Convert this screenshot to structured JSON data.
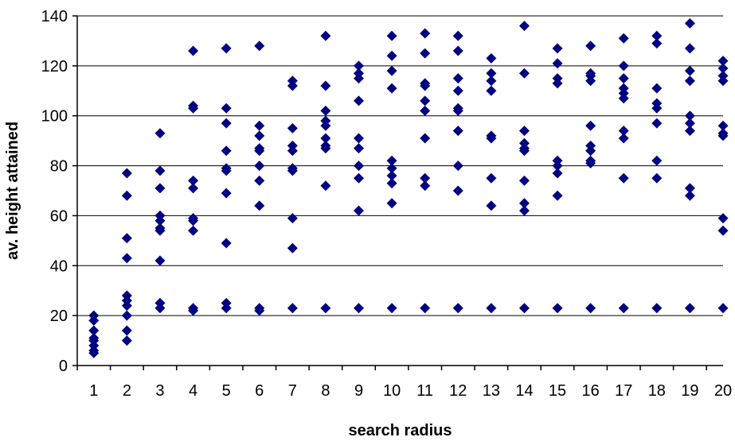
{
  "chart_data": {
    "type": "scatter",
    "title": "",
    "xlabel": "search radius",
    "ylabel": "av. height attained",
    "xlim": [
      0.5,
      20
    ],
    "ylim": [
      0,
      140
    ],
    "x_ticks": [
      1,
      2,
      3,
      4,
      5,
      6,
      7,
      8,
      9,
      10,
      11,
      12,
      13,
      14,
      15,
      16,
      17,
      18,
      19,
      20
    ],
    "y_ticks": [
      0,
      20,
      40,
      60,
      80,
      100,
      120,
      140
    ],
    "grid": "horizontal",
    "legend": "none",
    "marker": "diamond",
    "color": "#000080",
    "points": [
      [
        1,
        20
      ],
      [
        1,
        18
      ],
      [
        1,
        14
      ],
      [
        1,
        11
      ],
      [
        1,
        10
      ],
      [
        1,
        8
      ],
      [
        1,
        6
      ],
      [
        1,
        5
      ],
      [
        2,
        77
      ],
      [
        2,
        68
      ],
      [
        2,
        51
      ],
      [
        2,
        43
      ],
      [
        2,
        28
      ],
      [
        2,
        26
      ],
      [
        2,
        24
      ],
      [
        2,
        20
      ],
      [
        2,
        14
      ],
      [
        2,
        10
      ],
      [
        3,
        93
      ],
      [
        3,
        78
      ],
      [
        3,
        71
      ],
      [
        3,
        60
      ],
      [
        3,
        58
      ],
      [
        3,
        55
      ],
      [
        3,
        54
      ],
      [
        3,
        42
      ],
      [
        3,
        25
      ],
      [
        3,
        23
      ],
      [
        4,
        126
      ],
      [
        4,
        104
      ],
      [
        4,
        103
      ],
      [
        4,
        74
      ],
      [
        4,
        71
      ],
      [
        4,
        59
      ],
      [
        4,
        58
      ],
      [
        4,
        54
      ],
      [
        4,
        23
      ],
      [
        4,
        22
      ],
      [
        5,
        127
      ],
      [
        5,
        103
      ],
      [
        5,
        97
      ],
      [
        5,
        86
      ],
      [
        5,
        79
      ],
      [
        5,
        78
      ],
      [
        5,
        69
      ],
      [
        5,
        49
      ],
      [
        5,
        25
      ],
      [
        5,
        23
      ],
      [
        6,
        128
      ],
      [
        6,
        96
      ],
      [
        6,
        92
      ],
      [
        6,
        87
      ],
      [
        6,
        86
      ],
      [
        6,
        80
      ],
      [
        6,
        74
      ],
      [
        6,
        64
      ],
      [
        6,
        23
      ],
      [
        6,
        22
      ],
      [
        7,
        114
      ],
      [
        7,
        112
      ],
      [
        7,
        95
      ],
      [
        7,
        88
      ],
      [
        7,
        86
      ],
      [
        7,
        79
      ],
      [
        7,
        78
      ],
      [
        7,
        59
      ],
      [
        7,
        47
      ],
      [
        7,
        23
      ],
      [
        8,
        132
      ],
      [
        8,
        112
      ],
      [
        8,
        102
      ],
      [
        8,
        98
      ],
      [
        8,
        96
      ],
      [
        8,
        91
      ],
      [
        8,
        88
      ],
      [
        8,
        87
      ],
      [
        8,
        72
      ],
      [
        8,
        23
      ],
      [
        9,
        120
      ],
      [
        9,
        117
      ],
      [
        9,
        115
      ],
      [
        9,
        106
      ],
      [
        9,
        91
      ],
      [
        9,
        87
      ],
      [
        9,
        80
      ],
      [
        9,
        75
      ],
      [
        9,
        62
      ],
      [
        9,
        23
      ],
      [
        10,
        132
      ],
      [
        10,
        124
      ],
      [
        10,
        118
      ],
      [
        10,
        111
      ],
      [
        10,
        82
      ],
      [
        10,
        79
      ],
      [
        10,
        76
      ],
      [
        10,
        73
      ],
      [
        10,
        65
      ],
      [
        10,
        23
      ],
      [
        11,
        133
      ],
      [
        11,
        125
      ],
      [
        11,
        113
      ],
      [
        11,
        112
      ],
      [
        11,
        106
      ],
      [
        11,
        102
      ],
      [
        11,
        91
      ],
      [
        11,
        75
      ],
      [
        11,
        72
      ],
      [
        11,
        23
      ],
      [
        12,
        132
      ],
      [
        12,
        126
      ],
      [
        12,
        115
      ],
      [
        12,
        110
      ],
      [
        12,
        103
      ],
      [
        12,
        102
      ],
      [
        12,
        94
      ],
      [
        12,
        80
      ],
      [
        12,
        70
      ],
      [
        12,
        23
      ],
      [
        13,
        123
      ],
      [
        13,
        117
      ],
      [
        13,
        114
      ],
      [
        13,
        110
      ],
      [
        13,
        92
      ],
      [
        13,
        91
      ],
      [
        13,
        75
      ],
      [
        13,
        64
      ],
      [
        13,
        23
      ],
      [
        14,
        136
      ],
      [
        14,
        117
      ],
      [
        14,
        94
      ],
      [
        14,
        89
      ],
      [
        14,
        87
      ],
      [
        14,
        86
      ],
      [
        14,
        74
      ],
      [
        14,
        65
      ],
      [
        14,
        62
      ],
      [
        14,
        23
      ],
      [
        15,
        127
      ],
      [
        15,
        121
      ],
      [
        15,
        115
      ],
      [
        15,
        113
      ],
      [
        15,
        82
      ],
      [
        15,
        80
      ],
      [
        15,
        77
      ],
      [
        15,
        68
      ],
      [
        15,
        23
      ],
      [
        16,
        128
      ],
      [
        16,
        117
      ],
      [
        16,
        116
      ],
      [
        16,
        114
      ],
      [
        16,
        96
      ],
      [
        16,
        88
      ],
      [
        16,
        86
      ],
      [
        16,
        82
      ],
      [
        16,
        81
      ],
      [
        16,
        23
      ],
      [
        17,
        131
      ],
      [
        17,
        120
      ],
      [
        17,
        115
      ],
      [
        17,
        111
      ],
      [
        17,
        109
      ],
      [
        17,
        107
      ],
      [
        17,
        94
      ],
      [
        17,
        91
      ],
      [
        17,
        75
      ],
      [
        17,
        23
      ],
      [
        18,
        132
      ],
      [
        18,
        129
      ],
      [
        18,
        111
      ],
      [
        18,
        105
      ],
      [
        18,
        103
      ],
      [
        18,
        97
      ],
      [
        18,
        82
      ],
      [
        18,
        75
      ],
      [
        18,
        23
      ],
      [
        19,
        137
      ],
      [
        19,
        127
      ],
      [
        19,
        118
      ],
      [
        19,
        114
      ],
      [
        19,
        100
      ],
      [
        19,
        97
      ],
      [
        19,
        94
      ],
      [
        19,
        71
      ],
      [
        19,
        68
      ],
      [
        19,
        23
      ],
      [
        20,
        122
      ],
      [
        20,
        119
      ],
      [
        20,
        116
      ],
      [
        20,
        114
      ],
      [
        20,
        96
      ],
      [
        20,
        93
      ],
      [
        20,
        92
      ],
      [
        20,
        59
      ],
      [
        20,
        54
      ],
      [
        20,
        23
      ]
    ]
  }
}
